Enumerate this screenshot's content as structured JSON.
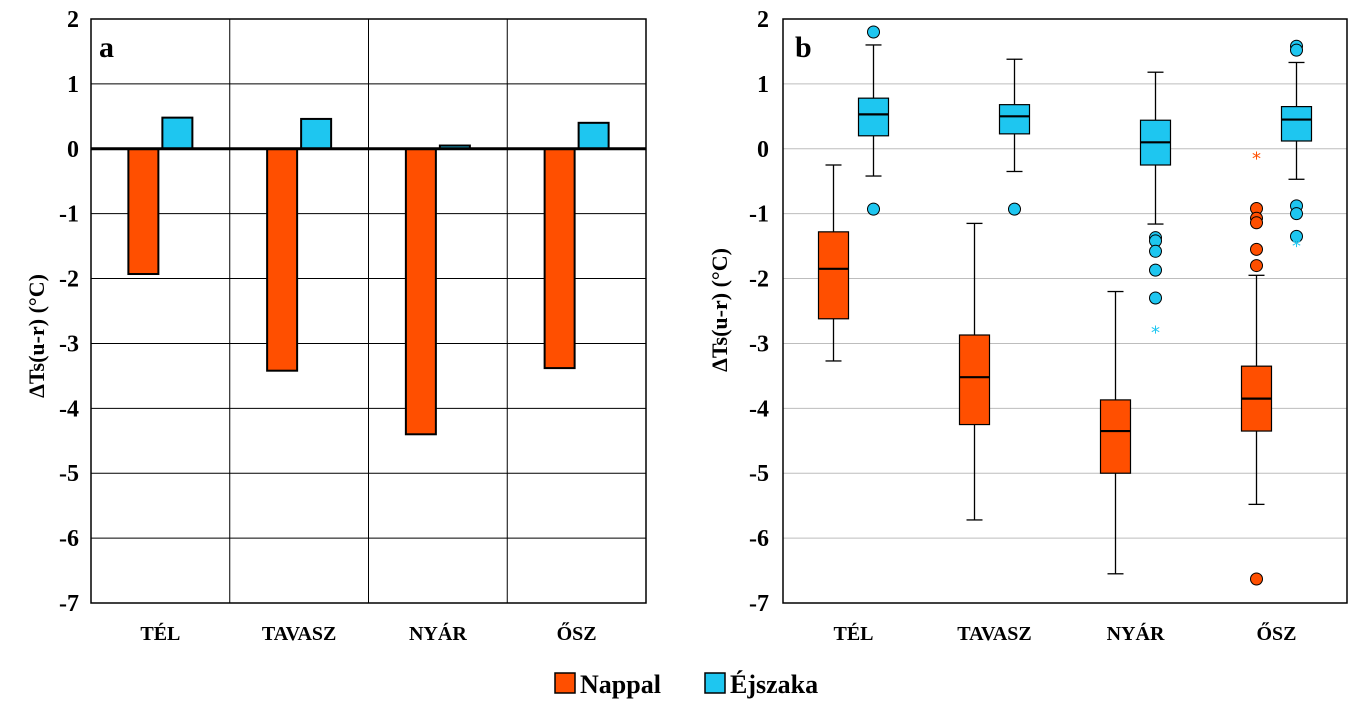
{
  "chart_data": [
    {
      "type": "bar",
      "panel_label": "a",
      "ylabel": "ΔTs(u-r) (°C)",
      "ylim": [
        -7,
        2
      ],
      "yticks": [
        2,
        1,
        0,
        -1,
        -2,
        -3,
        -4,
        -5,
        -6,
        -7
      ],
      "grid": true,
      "categories": [
        "TÉL",
        "TAVASZ",
        "NYÁR",
        "ŐSZ"
      ],
      "series": [
        {
          "name": "Nappal",
          "color": "#ff4f00",
          "values": [
            -1.93,
            -3.42,
            -4.4,
            -3.38
          ]
        },
        {
          "name": "Éjszaka",
          "color": "#1ec6f0",
          "values": [
            0.48,
            0.46,
            0.05,
            0.4
          ]
        }
      ]
    },
    {
      "type": "box",
      "panel_label": "b",
      "ylabel": "ΔTs(u-r) (°C)",
      "ylim": [
        -7,
        2
      ],
      "yticks": [
        2,
        1,
        0,
        -1,
        -2,
        -3,
        -4,
        -5,
        -6,
        -7
      ],
      "grid": "horizontal",
      "categories": [
        "TÉL",
        "TAVASZ",
        "NYÁR",
        "ŐSZ"
      ],
      "series": [
        {
          "name": "Nappal",
          "color": "#ff4f00",
          "boxes": [
            {
              "whisker_low": -3.27,
              "q1": -2.62,
              "median": -1.85,
              "q3": -1.28,
              "whisker_high": -0.25,
              "outliers": [],
              "extremes": []
            },
            {
              "whisker_low": -5.72,
              "q1": -4.25,
              "median": -3.52,
              "q3": -2.87,
              "whisker_high": -1.15,
              "outliers": [],
              "extremes": []
            },
            {
              "whisker_low": -6.55,
              "q1": -5.0,
              "median": -4.35,
              "q3": -3.87,
              "whisker_high": -2.2,
              "outliers": [],
              "extremes": []
            },
            {
              "whisker_low": -5.48,
              "q1": -4.35,
              "median": -3.85,
              "q3": -3.35,
              "whisker_high": -1.95,
              "outliers": [
                -0.92,
                -1.07,
                -1.14,
                -1.55,
                -1.8,
                -6.63
              ],
              "extremes": [
                -0.12
              ]
            }
          ]
        },
        {
          "name": "Éjszaka",
          "color": "#1ec6f0",
          "boxes": [
            {
              "whisker_low": -0.42,
              "q1": 0.2,
              "median": 0.53,
              "q3": 0.78,
              "whisker_high": 1.6,
              "outliers": [
                1.8,
                -0.93
              ],
              "extremes": []
            },
            {
              "whisker_low": -0.35,
              "q1": 0.23,
              "median": 0.5,
              "q3": 0.68,
              "whisker_high": 1.38,
              "outliers": [
                -0.93
              ],
              "extremes": []
            },
            {
              "whisker_low": -1.16,
              "q1": -0.25,
              "median": 0.1,
              "q3": 0.44,
              "whisker_high": 1.18,
              "outliers": [
                -1.37,
                -1.42,
                -1.58,
                -1.87,
                -2.3
              ],
              "extremes": [
                -2.8
              ]
            },
            {
              "whisker_low": -0.47,
              "q1": 0.12,
              "median": 0.45,
              "q3": 0.65,
              "whisker_high": 1.33,
              "outliers": [
                1.58,
                1.52,
                -0.88,
                -1.0,
                -1.35
              ],
              "extremes": [
                -1.47
              ]
            }
          ]
        }
      ]
    }
  ],
  "legend": {
    "placement": "bottom-center",
    "items": [
      {
        "label": "Nappal",
        "color": "#ff4f00"
      },
      {
        "label": "Éjszaka",
        "color": "#1ec6f0"
      }
    ]
  }
}
